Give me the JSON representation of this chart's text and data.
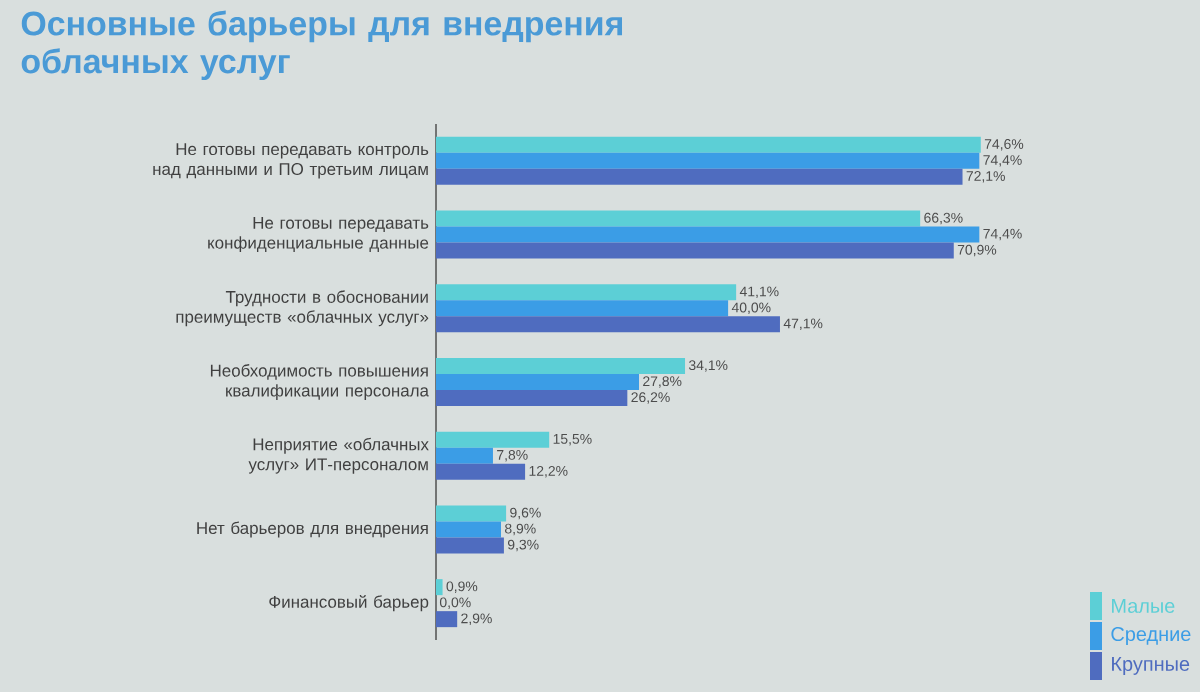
{
  "chart_data": {
    "type": "bar",
    "orientation": "horizontal",
    "title": "Основные барьеры для внедрения облачных услуг",
    "categories": [
      "Не готовы передавать контроль над данными и ПО третьим лицам",
      "Не готовы передавать конфиденциальные данные",
      "Трудности в обосновании преимуществ «облачных услуг»",
      "Необходимость повышения квалификации персонала",
      "Неприятие «облачных услуг» ИТ-персоналом",
      "Нет барьеров для внедрения",
      "Финансовый барьер"
    ],
    "series": [
      {
        "name": "Малые",
        "color": "#5ccfd6",
        "values": [
          74.6,
          66.3,
          41.1,
          34.1,
          15.5,
          9.6,
          0.9
        ],
        "value_labels": [
          "74,6%",
          "66,3%",
          "41,1%",
          "34,1%",
          "15,5%",
          "9,6%",
          "0,9%"
        ]
      },
      {
        "name": "Средние",
        "color": "#3b9de6",
        "values": [
          74.4,
          74.4,
          40.0,
          27.8,
          7.8,
          8.9,
          0.0
        ],
        "value_labels": [
          "74,4%",
          "74,4%",
          "40,0%",
          "27,8%",
          "7,8%",
          "8,9%",
          "0,0%"
        ]
      },
      {
        "name": "Крупные",
        "color": "#4f6cbf",
        "values": [
          72.1,
          70.9,
          47.1,
          26.2,
          12.2,
          9.3,
          2.9
        ],
        "value_labels": [
          "72,1%",
          "70,9%",
          "47,1%",
          "26,2%",
          "12,2%",
          "9,3%",
          "2,9%"
        ]
      }
    ],
    "tick_labels": "y",
    "legend": "bottom right"
  }
}
